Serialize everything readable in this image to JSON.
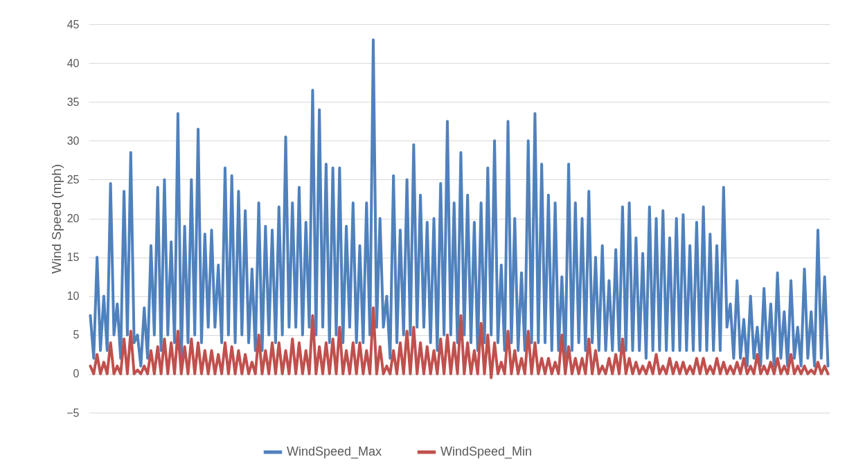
{
  "chart_data": {
    "type": "line",
    "ylabel": "Wind Speed (mph)",
    "categories": [
      null,
      null,
      null,
      null,
      null,
      null,
      null,
      null,
      null,
      null,
      null,
      null,
      null,
      null,
      null,
      null,
      null,
      null,
      null,
      null,
      null,
      null,
      null,
      null,
      null,
      null,
      null,
      null,
      null,
      null,
      null,
      null,
      null,
      null,
      null,
      null,
      null,
      null,
      null,
      null,
      null,
      null,
      null,
      null,
      null,
      null,
      null,
      null,
      null,
      null,
      null,
      null,
      null,
      null,
      null,
      null,
      null,
      null,
      null,
      null,
      null,
      null,
      null,
      null,
      null,
      null,
      null,
      null,
      null,
      null,
      null,
      null,
      null,
      null,
      null,
      null,
      null,
      null,
      null,
      null,
      null,
      null,
      null,
      null,
      null,
      null,
      null,
      null,
      null,
      null,
      null,
      null,
      null,
      null,
      null,
      null,
      null,
      null,
      null,
      null,
      null,
      null,
      null,
      null,
      null,
      null,
      null,
      null,
      null,
      null,
      null,
      null,
      null,
      null,
      null,
      null,
      null,
      null,
      null,
      null,
      null,
      null,
      null,
      null,
      null,
      null,
      null,
      null,
      null,
      null,
      null,
      null,
      null,
      null,
      null,
      null,
      null,
      null,
      null,
      null,
      null,
      null,
      null,
      null,
      null,
      null,
      null,
      null,
      null,
      null,
      null,
      null,
      null,
      null,
      null,
      null,
      null,
      null,
      null,
      null,
      null,
      null,
      null,
      null,
      null,
      null,
      null,
      null,
      null,
      null,
      null,
      null,
      null,
      null,
      null,
      null,
      null,
      null,
      null,
      null,
      null,
      null,
      null,
      null,
      null,
      null,
      null,
      null,
      null,
      null,
      null,
      null,
      null,
      null,
      null,
      null,
      null,
      null,
      null,
      null,
      null,
      null,
      null,
      null,
      null,
      null,
      null,
      null,
      null,
      null,
      null,
      null,
      null,
      null,
      null,
      null,
      null,
      null,
      null,
      null
    ],
    "series": [
      {
        "name": "WindSpeed_Max",
        "color": "#4f81bd",
        "values": [
          7.5,
          2,
          15,
          3,
          10,
          3,
          24.5,
          5,
          9,
          2,
          23.5,
          5,
          28.5,
          4,
          5,
          1,
          8.5,
          2,
          16.5,
          5,
          24,
          3,
          25,
          5,
          17,
          4,
          33.5,
          2,
          19,
          4,
          25,
          5,
          31.5,
          4,
          18,
          6,
          18.5,
          6,
          14,
          4,
          26.5,
          5,
          25.5,
          4,
          23.5,
          5,
          21,
          4,
          13.5,
          3,
          22,
          3,
          19,
          5,
          18.5,
          4,
          21.5,
          5,
          30.5,
          6,
          22,
          6,
          24,
          5,
          19.5,
          6,
          36.5,
          5,
          34,
          6,
          27,
          4,
          26.5,
          5,
          26.5,
          4,
          19,
          6,
          22,
          4,
          16.5,
          4,
          22,
          5,
          43,
          6,
          20,
          6,
          10,
          2,
          25.5,
          4,
          18.5,
          5,
          25,
          5,
          29.5,
          6,
          23,
          6,
          19.5,
          4,
          20,
          3,
          24.5,
          5,
          32.5,
          5,
          22,
          4,
          28.5,
          5,
          23,
          4,
          19.5,
          3,
          22,
          4,
          26.5,
          5,
          30,
          4,
          14,
          3,
          32.5,
          4,
          20,
          3,
          13,
          3,
          30,
          4,
          33.5,
          4,
          27,
          4,
          23,
          3,
          22,
          3,
          12.5,
          2,
          27,
          3,
          22,
          4,
          20,
          3,
          23.5,
          4,
          15,
          3,
          16.5,
          3,
          12,
          3,
          16,
          3,
          21.5,
          3,
          22,
          3,
          17.5,
          3,
          15.5,
          2,
          21.5,
          3,
          20,
          3,
          21,
          3,
          17.5,
          3,
          20,
          3,
          20.5,
          3,
          16.5,
          3,
          19.5,
          3,
          21.5,
          3,
          18,
          3,
          16.5,
          3,
          24,
          6,
          9,
          2,
          12,
          2,
          7,
          1,
          10,
          2,
          6,
          1,
          11,
          2,
          9,
          1,
          13,
          2,
          8,
          1,
          12,
          2,
          6,
          1,
          13.5,
          2,
          8,
          1,
          18.5,
          2,
          12.5,
          1
        ]
      },
      {
        "name": "WindSpeed_Min",
        "color": "#c0504d",
        "values": [
          1,
          0,
          2.5,
          0,
          1.5,
          0,
          4,
          0,
          1,
          0,
          4.5,
          0,
          5.5,
          0,
          0.5,
          0,
          1,
          0,
          3,
          0,
          3.5,
          0,
          4.5,
          0,
          4,
          0,
          5.5,
          0,
          3.5,
          0,
          4.5,
          0,
          4,
          0,
          3,
          0,
          3,
          0,
          2.5,
          0,
          4,
          0,
          3.5,
          0,
          3,
          0,
          2.5,
          0,
          1.5,
          0,
          5,
          0,
          3,
          0,
          4,
          0,
          4,
          0,
          3,
          0,
          4.5,
          0,
          4,
          0,
          3,
          0,
          7.5,
          0,
          3.5,
          0,
          4,
          0,
          4.5,
          0,
          6,
          0,
          3,
          0,
          4,
          0,
          4,
          0,
          3,
          0,
          8.5,
          0,
          3.5,
          0,
          1,
          0,
          3,
          0,
          4,
          0,
          5.5,
          0,
          6,
          0,
          4,
          0,
          3.5,
          0,
          3,
          0,
          4.5,
          0,
          5,
          0,
          4,
          0,
          7.5,
          0,
          4,
          0,
          3,
          0,
          6.5,
          0,
          5,
          -0.5,
          4,
          0,
          1.5,
          0,
          5.5,
          0,
          3,
          0,
          2,
          0,
          5.5,
          0,
          4,
          0,
          2,
          0,
          2,
          0,
          1.5,
          0,
          5,
          0,
          3.5,
          0,
          2,
          0,
          2,
          0,
          4.5,
          0,
          3,
          0,
          1,
          0,
          2,
          0,
          2.5,
          0,
          4.5,
          0,
          2,
          0,
          1.5,
          0,
          1,
          0,
          1.5,
          0,
          2.5,
          0,
          1,
          0,
          2,
          0,
          1.5,
          0,
          1.5,
          0,
          1,
          0,
          2,
          0,
          2,
          0,
          1,
          0,
          2,
          0,
          1.5,
          0,
          1,
          0,
          1.5,
          0,
          2,
          0,
          1,
          0,
          2.5,
          0,
          1,
          0,
          1.5,
          0,
          2,
          0,
          1,
          0,
          2.5,
          0,
          1,
          0,
          1,
          0,
          0.5,
          0,
          1.5,
          0,
          1,
          0
        ]
      }
    ],
    "ylim": [
      -5,
      45
    ],
    "yticks": [
      -5,
      0,
      5,
      10,
      15,
      20,
      25,
      30,
      35,
      40,
      45
    ],
    "grid": "y",
    "legend": "bottom",
    "tick_labels": "y",
    "line_style": "solid",
    "marker": "none"
  }
}
